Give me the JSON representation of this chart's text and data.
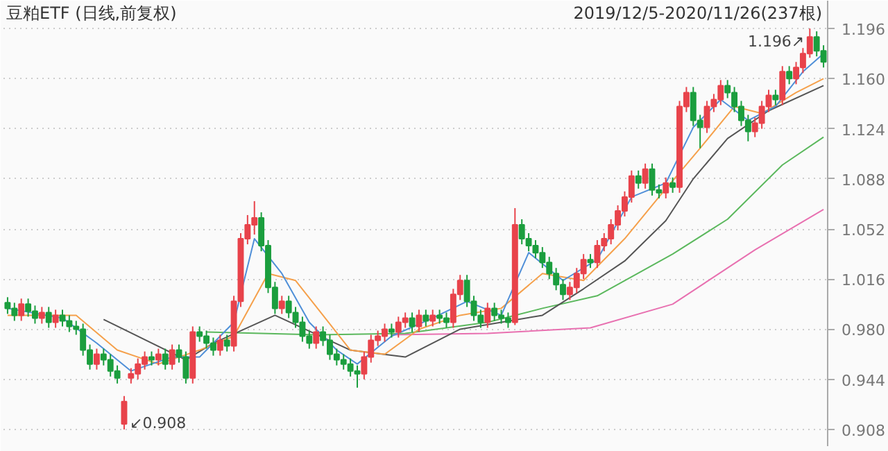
{
  "chart_data": {
    "type": "candlestick",
    "title": "豆粕ETF (日线,前复权)",
    "subtitle": "2019/12/5-2020/11/26(237根)",
    "categories": [
      null,
      null,
      null,
      null,
      null,
      null,
      null,
      null,
      null,
      null,
      null,
      null,
      null,
      null,
      null,
      null,
      null,
      null,
      null,
      null,
      null,
      null,
      null,
      null,
      null,
      null,
      null,
      null,
      null,
      null,
      null,
      null,
      null,
      null,
      null,
      null,
      null,
      null,
      null,
      null,
      null,
      null,
      null,
      null,
      null,
      null,
      null,
      null,
      null,
      null,
      null,
      null,
      null,
      null,
      null,
      null,
      null,
      null,
      null,
      null,
      null,
      null,
      null,
      null,
      null,
      null,
      null,
      null,
      null,
      null,
      null,
      null,
      null,
      null,
      null,
      null,
      null,
      null,
      null,
      null,
      null,
      null,
      null,
      null,
      null,
      null,
      null,
      null,
      null,
      null,
      null,
      null,
      null,
      null,
      null,
      null,
      null,
      null,
      null,
      null,
      null,
      null,
      null,
      null,
      null,
      null,
      null,
      null,
      null,
      null,
      null,
      null,
      null,
      null,
      null,
      null,
      null,
      null,
      null,
      null
    ],
    "colors": [
      "#1b9e3e",
      "#1b9e3e",
      "#e8434b",
      "#1b9e3e",
      "#1b9e3e",
      "#e8434b",
      "#1b9e3e",
      "#e8434b",
      "#1b9e3e",
      "#1b9e3e",
      "#1b9e3e",
      "#1b9e3e",
      "#1b9e3e",
      "#e8434b",
      "#1b9e3e",
      "#1b9e3e",
      "#1b9e3e",
      "#e8434b",
      "#e8434b",
      "#e8434b",
      "#e8434b",
      "#1b9e3e",
      "#e8434b",
      "#1b9e3e",
      "#e8434b",
      "#1b9e3e",
      "#1b9e3e",
      "#e8434b",
      "#1b9e3e",
      "#1b9e3e",
      "#1b9e3e",
      "#e8434b",
      "#1b9e3e",
      "#e8434b",
      "#e8434b",
      "#e8434b",
      "#e8434b",
      "#1b9e3e",
      "#1b9e3e",
      "#1b9e3e",
      "#e8434b",
      "#1b9e3e",
      "#1b9e3e",
      "#1b9e3e",
      "#1b9e3e",
      "#e8434b",
      "#1b9e3e",
      "#1b9e3e",
      "#1b9e3e",
      "#1b9e3e",
      "#1b9e3e",
      "#1b9e3e",
      "#e8434b",
      "#e8434b",
      "#e8434b",
      "#e8434b",
      "#1b9e3e",
      "#e8434b",
      "#e8434b",
      "#1b9e3e",
      "#e8434b",
      "#1b9e3e",
      "#e8434b",
      "#1b9e3e",
      "#1b9e3e",
      "#e8434b",
      "#e8434b",
      "#1b9e3e",
      "#1b9e3e",
      "#1b9e3e",
      "#e8434b",
      "#1b9e3e",
      "#1b9e3e",
      "#1b9e3e",
      "#e8434b",
      "#1b9e3e",
      "#1b9e3e",
      "#1b9e3e",
      "#1b9e3e",
      "#1b9e3e",
      "#1b9e3e",
      "#1b9e3e",
      "#e8434b",
      "#e8434b",
      "#e8434b",
      "#1b9e3e",
      "#e8434b",
      "#e8434b",
      "#e8434b",
      "#e8434b",
      "#e8434b",
      "#e8434b",
      "#1b9e3e",
      "#e8434b",
      "#1b9e3e",
      "#1b9e3e",
      "#e8434b",
      "#1b9e3e",
      "#e8434b",
      "#e8434b",
      "#1b9e3e",
      "#1b9e3e",
      "#e8434b",
      "#e8434b",
      "#e8434b",
      "#1b9e3e",
      "#1b9e3e",
      "#1b9e3e",
      "#1b9e3e",
      "#e8434b",
      "#e8434b",
      "#e8434b",
      "#1b9e3e",
      "#e8434b",
      "#1b9e3e",
      "#e8434b",
      "#e8434b",
      "#e8434b",
      "#1b9e3e",
      "#1b9e3e"
    ],
    "ohlc": [
      [
        0.999,
        1.003,
        0.991,
        0.995
      ],
      [
        0.995,
        0.999,
        0.986,
        0.99
      ],
      [
        0.99,
        1.002,
        0.986,
        0.998
      ],
      [
        0.998,
        1.002,
        0.989,
        0.993
      ],
      [
        0.993,
        0.997,
        0.984,
        0.988
      ],
      [
        0.988,
        0.996,
        0.984,
        0.992
      ],
      [
        0.992,
        0.996,
        0.981,
        0.985
      ],
      [
        0.985,
        0.994,
        0.981,
        0.99
      ],
      [
        0.99,
        0.994,
        0.982,
        0.986
      ],
      [
        0.986,
        0.99,
        0.978,
        0.982
      ],
      [
        0.982,
        0.986,
        0.976,
        0.98
      ],
      [
        0.98,
        0.984,
        0.961,
        0.965
      ],
      [
        0.965,
        0.969,
        0.951,
        0.955
      ],
      [
        0.955,
        0.966,
        0.951,
        0.962
      ],
      [
        0.962,
        0.966,
        0.954,
        0.958
      ],
      [
        0.958,
        0.962,
        0.946,
        0.95
      ],
      [
        0.95,
        0.954,
        0.941,
        0.945
      ],
      [
        0.912,
        0.932,
        0.908,
        0.928
      ],
      [
        0.945,
        0.952,
        0.941,
        0.948
      ],
      [
        0.948,
        0.959,
        0.944,
        0.955
      ],
      [
        0.955,
        0.964,
        0.951,
        0.96
      ],
      [
        0.96,
        0.964,
        0.954,
        0.958
      ],
      [
        0.958,
        0.966,
        0.954,
        0.962
      ],
      [
        0.962,
        0.966,
        0.951,
        0.955
      ],
      [
        0.955,
        0.969,
        0.951,
        0.965
      ],
      [
        0.965,
        0.969,
        0.956,
        0.96
      ],
      [
        0.96,
        0.964,
        0.941,
        0.945
      ],
      [
        0.945,
        0.982,
        0.941,
        0.978
      ],
      [
        0.978,
        0.982,
        0.971,
        0.975
      ],
      [
        0.975,
        0.979,
        0.966,
        0.97
      ],
      [
        0.97,
        0.974,
        0.961,
        0.965
      ],
      [
        0.965,
        0.976,
        0.961,
        0.972
      ],
      [
        0.972,
        0.976,
        0.964,
        0.968
      ],
      [
        0.968,
        1.004,
        0.964,
        1.0
      ],
      [
        1.0,
        1.049,
        0.996,
        1.045
      ],
      [
        1.045,
        1.062,
        1.041,
        1.055
      ],
      [
        1.055,
        1.072,
        1.048,
        1.06
      ],
      [
        1.06,
        1.064,
        1.036,
        1.04
      ],
      [
        1.04,
        1.044,
        1.006,
        1.01
      ],
      [
        1.01,
        1.014,
        0.991,
        0.995
      ],
      [
        0.995,
        1.004,
        0.991,
        1.0
      ],
      [
        1.0,
        1.004,
        0.988,
        0.992
      ],
      [
        0.992,
        0.996,
        0.981,
        0.985
      ],
      [
        0.985,
        0.989,
        0.971,
        0.975
      ],
      [
        0.975,
        0.979,
        0.966,
        0.97
      ],
      [
        0.97,
        0.982,
        0.966,
        0.978
      ],
      [
        0.978,
        0.982,
        0.968,
        0.972
      ],
      [
        0.972,
        0.976,
        0.958,
        0.962
      ],
      [
        0.962,
        0.966,
        0.954,
        0.958
      ],
      [
        0.958,
        0.962,
        0.951,
        0.955
      ],
      [
        0.955,
        0.959,
        0.946,
        0.95
      ],
      [
        0.95,
        0.954,
        0.938,
        0.948
      ],
      [
        0.948,
        0.964,
        0.944,
        0.96
      ],
      [
        0.96,
        0.976,
        0.956,
        0.972
      ],
      [
        0.972,
        0.979,
        0.968,
        0.975
      ],
      [
        0.975,
        0.984,
        0.971,
        0.98
      ],
      [
        0.98,
        0.984,
        0.974,
        0.978
      ],
      [
        0.978,
        0.989,
        0.974,
        0.985
      ],
      [
        0.985,
        0.992,
        0.981,
        0.988
      ],
      [
        0.988,
        0.992,
        0.978,
        0.982
      ],
      [
        0.982,
        0.994,
        0.978,
        0.99
      ],
      [
        0.99,
        0.994,
        0.982,
        0.986
      ],
      [
        0.986,
        0.994,
        0.982,
        0.99
      ],
      [
        0.99,
        0.994,
        0.984,
        0.988
      ],
      [
        0.988,
        0.992,
        0.981,
        0.985
      ],
      [
        0.985,
        1.009,
        0.981,
        1.005
      ],
      [
        1.005,
        1.019,
        1.001,
        1.015
      ],
      [
        1.015,
        1.019,
        0.996,
        1.0
      ],
      [
        1.0,
        1.004,
        0.986,
        0.99
      ],
      [
        0.99,
        0.994,
        0.981,
        0.985
      ],
      [
        0.985,
        0.999,
        0.981,
        0.995
      ],
      [
        0.995,
        0.999,
        0.986,
        0.99
      ],
      [
        0.99,
        0.994,
        0.984,
        0.988
      ],
      [
        0.988,
        0.992,
        0.981,
        0.985
      ],
      [
        0.985,
        1.067,
        0.983,
        1.055
      ],
      [
        1.055,
        1.059,
        1.041,
        1.045
      ],
      [
        1.045,
        1.049,
        1.036,
        1.04
      ],
      [
        1.04,
        1.044,
        1.031,
        1.035
      ],
      [
        1.035,
        1.039,
        1.024,
        1.028
      ],
      [
        1.028,
        1.032,
        1.016,
        1.02
      ],
      [
        1.02,
        1.024,
        1.008,
        1.012
      ],
      [
        1.012,
        1.016,
        1.001,
        1.005
      ],
      [
        1.005,
        1.014,
        1.001,
        1.01
      ],
      [
        1.01,
        1.024,
        1.006,
        1.02
      ],
      [
        1.02,
        1.034,
        1.016,
        1.03
      ],
      [
        1.03,
        1.034,
        1.024,
        1.028
      ],
      [
        1.028,
        1.044,
        1.024,
        1.04
      ],
      [
        1.04,
        1.049,
        1.036,
        1.045
      ],
      [
        1.045,
        1.059,
        1.041,
        1.055
      ],
      [
        1.055,
        1.069,
        1.051,
        1.065
      ],
      [
        1.065,
        1.079,
        1.061,
        1.075
      ],
      [
        1.075,
        1.094,
        1.071,
        1.09
      ],
      [
        1.09,
        1.094,
        1.081,
        1.085
      ],
      [
        1.085,
        1.099,
        1.081,
        1.095
      ],
      [
        1.095,
        1.099,
        1.076,
        1.08
      ],
      [
        1.08,
        1.084,
        1.074,
        1.078
      ],
      [
        1.078,
        1.089,
        1.074,
        1.085
      ],
      [
        1.085,
        1.089,
        1.078,
        1.082
      ],
      [
        1.082,
        1.144,
        1.078,
        1.14
      ],
      [
        1.14,
        1.154,
        1.136,
        1.15
      ],
      [
        1.15,
        1.154,
        1.126,
        1.13
      ],
      [
        1.13,
        1.134,
        1.11,
        1.125
      ],
      [
        1.125,
        1.144,
        1.121,
        1.14
      ],
      [
        1.14,
        1.149,
        1.136,
        1.145
      ],
      [
        1.145,
        1.159,
        1.141,
        1.155
      ],
      [
        1.155,
        1.159,
        1.146,
        1.15
      ],
      [
        1.15,
        1.154,
        1.136,
        1.14
      ],
      [
        1.14,
        1.144,
        1.126,
        1.13
      ],
      [
        1.13,
        1.134,
        1.115,
        1.122
      ],
      [
        1.122,
        1.132,
        1.118,
        1.128
      ],
      [
        1.128,
        1.144,
        1.124,
        1.14
      ],
      [
        1.14,
        1.152,
        1.136,
        1.148
      ],
      [
        1.148,
        1.152,
        1.141,
        1.145
      ],
      [
        1.145,
        1.169,
        1.141,
        1.165
      ],
      [
        1.165,
        1.169,
        1.156,
        1.16
      ],
      [
        1.16,
        1.172,
        1.156,
        1.168
      ],
      [
        1.168,
        1.182,
        1.164,
        1.178
      ],
      [
        1.178,
        1.196,
        1.175,
        1.19
      ],
      [
        1.19,
        1.194,
        1.176,
        1.18
      ],
      [
        1.18,
        1.184,
        1.168,
        1.172
      ]
    ],
    "series": [
      {
        "type": "line",
        "color": "#e870b0",
        "values": [
          null,
          null,
          null,
          null,
          null,
          null,
          null,
          null,
          null,
          null,
          null,
          null,
          null,
          null,
          null,
          null,
          null,
          null,
          null,
          null,
          null,
          null,
          null,
          null,
          null,
          null,
          null,
          null,
          null,
          null,
          null,
          null,
          null,
          null,
          null,
          null,
          null,
          null,
          null,
          null,
          null,
          null,
          null,
          null,
          null,
          null,
          null,
          null,
          null,
          null,
          null,
          null,
          null,
          null,
          null,
          null,
          0.976,
          null,
          null,
          null,
          null,
          null,
          null,
          null,
          null,
          null,
          null,
          null,
          null,
          null,
          0.977,
          null,
          null,
          null,
          null,
          null,
          null,
          null,
          null,
          null,
          null,
          null,
          null,
          null,
          null,
          0.981,
          null,
          null,
          null,
          null,
          null,
          null,
          null,
          null,
          null,
          null,
          null,
          0.998,
          null,
          null,
          null,
          null,
          null,
          null,
          null,
          null,
          null,
          null,
          null,
          1.037,
          null,
          null,
          null,
          null,
          null,
          null,
          null,
          null,
          null,
          1.066
        ]
      },
      {
        "type": "line",
        "color": "#5bb85d",
        "values": [
          null,
          null,
          null,
          null,
          null,
          null,
          null,
          null,
          null,
          null,
          null,
          null,
          null,
          null,
          null,
          null,
          null,
          null,
          null,
          null,
          null,
          null,
          null,
          null,
          null,
          null,
          null,
          null,
          null,
          0.978,
          null,
          null,
          null,
          null,
          null,
          null,
          null,
          null,
          null,
          null,
          null,
          null,
          null,
          null,
          null,
          0.976,
          null,
          null,
          null,
          null,
          null,
          null,
          null,
          null,
          null,
          null,
          null,
          null,
          0.977,
          null,
          null,
          null,
          null,
          null,
          null,
          null,
          null,
          null,
          null,
          null,
          0.985,
          null,
          null,
          null,
          null,
          null,
          null,
          null,
          0.995,
          null,
          null,
          null,
          null,
          null,
          null,
          null,
          1.004,
          null,
          null,
          null,
          null,
          null,
          null,
          null,
          null,
          null,
          null,
          1.034,
          null,
          null,
          null,
          null,
          null,
          null,
          null,
          1.059,
          null,
          null,
          null,
          null,
          null,
          null,
          null,
          1.098,
          null,
          null,
          null,
          null,
          null,
          1.118
        ]
      },
      {
        "type": "line",
        "color": "#555555",
        "values": [
          null,
          null,
          null,
          null,
          null,
          null,
          null,
          null,
          null,
          null,
          null,
          null,
          null,
          null,
          0.987,
          null,
          null,
          null,
          null,
          null,
          null,
          null,
          null,
          null,
          null,
          null,
          0.958,
          null,
          null,
          null,
          0.97,
          null,
          null,
          null,
          null,
          null,
          null,
          null,
          null,
          0.99,
          null,
          null,
          null,
          null,
          null,
          null,
          null,
          null,
          null,
          null,
          0.965,
          null,
          null,
          null,
          null,
          null,
          null,
          null,
          0.96,
          null,
          null,
          null,
          null,
          null,
          null,
          null,
          0.98,
          null,
          null,
          null,
          null,
          null,
          null,
          null,
          null,
          null,
          null,
          null,
          0.99,
          null,
          null,
          null,
          null,
          null,
          1.009,
          null,
          null,
          null,
          null,
          null,
          1.029,
          null,
          null,
          null,
          null,
          null,
          1.058,
          null,
          null,
          null,
          1.088,
          null,
          null,
          null,
          null,
          1.117,
          null,
          null,
          null,
          null,
          null,
          1.137,
          null,
          null,
          null,
          null,
          null,
          null,
          null,
          1.155
        ]
      },
      {
        "type": "line",
        "color": "#f5a04b",
        "values": [
          0.99,
          null,
          null,
          null,
          null,
          null,
          null,
          null,
          null,
          null,
          0.99,
          null,
          null,
          null,
          null,
          null,
          0.965,
          null,
          null,
          null,
          null,
          null,
          0.955,
          null,
          null,
          null,
          null,
          null,
          0.965,
          null,
          null,
          null,
          null,
          0.975,
          null,
          null,
          null,
          null,
          1.02,
          null,
          null,
          null,
          1.015,
          null,
          null,
          null,
          0.99,
          null,
          null,
          null,
          0.965,
          null,
          null,
          null,
          null,
          0.962,
          null,
          null,
          null,
          null,
          0.98,
          null,
          null,
          null,
          null,
          null,
          0.99,
          null,
          null,
          null,
          null,
          null,
          0.995,
          null,
          null,
          null,
          null,
          null,
          1.02,
          null,
          null,
          null,
          null,
          null,
          1.015,
          null,
          null,
          null,
          null,
          null,
          1.045,
          null,
          null,
          null,
          null,
          1.075,
          null,
          null,
          null,
          null,
          null,
          1.11,
          null,
          null,
          null,
          null,
          1.14,
          null,
          null,
          null,
          1.135,
          null,
          null,
          null,
          null,
          1.15,
          null,
          null,
          null,
          1.16
        ]
      },
      {
        "type": "line",
        "color": "#4f8fd8",
        "values": [
          0.995,
          null,
          null,
          null,
          null,
          null,
          null,
          null,
          0.988,
          null,
          null,
          null,
          null,
          0.97,
          null,
          null,
          null,
          null,
          0.95,
          null,
          null,
          null,
          null,
          null,
          0.96,
          null,
          null,
          null,
          0.96,
          null,
          null,
          null,
          null,
          0.985,
          null,
          null,
          1.045,
          null,
          null,
          null,
          1.02,
          null,
          null,
          null,
          0.985,
          null,
          null,
          null,
          0.965,
          null,
          null,
          0.955,
          null,
          null,
          null,
          null,
          0.975,
          null,
          null,
          null,
          null,
          null,
          0.988,
          null,
          null,
          null,
          null,
          1.0,
          null,
          null,
          null,
          null,
          0.99,
          null,
          null,
          null,
          1.035,
          null,
          null,
          null,
          null,
          1.015,
          null,
          null,
          null,
          null,
          1.03,
          null,
          null,
          null,
          null,
          1.075,
          null,
          null,
          null,
          null,
          1.085,
          null,
          null,
          null,
          1.125,
          null,
          null,
          null,
          1.145,
          null,
          null,
          null,
          1.13,
          null,
          null,
          null,
          1.14,
          null,
          null,
          null,
          1.165,
          null,
          null,
          1.178
        ]
      }
    ],
    "annotations": [
      "1.196↗",
      "↙0.908"
    ],
    "ylim": [
      0.896,
      1.216
    ],
    "yticks": [
      0.908,
      0.944,
      {
        "value": 0.98,
        "label": "0.980"
      },
      1.016,
      1.052,
      1.088,
      1.124,
      {
        "value": 1.16,
        "label": "1.160"
      },
      1.196
    ],
    "grid": "y",
    "tick_labels": "y"
  }
}
